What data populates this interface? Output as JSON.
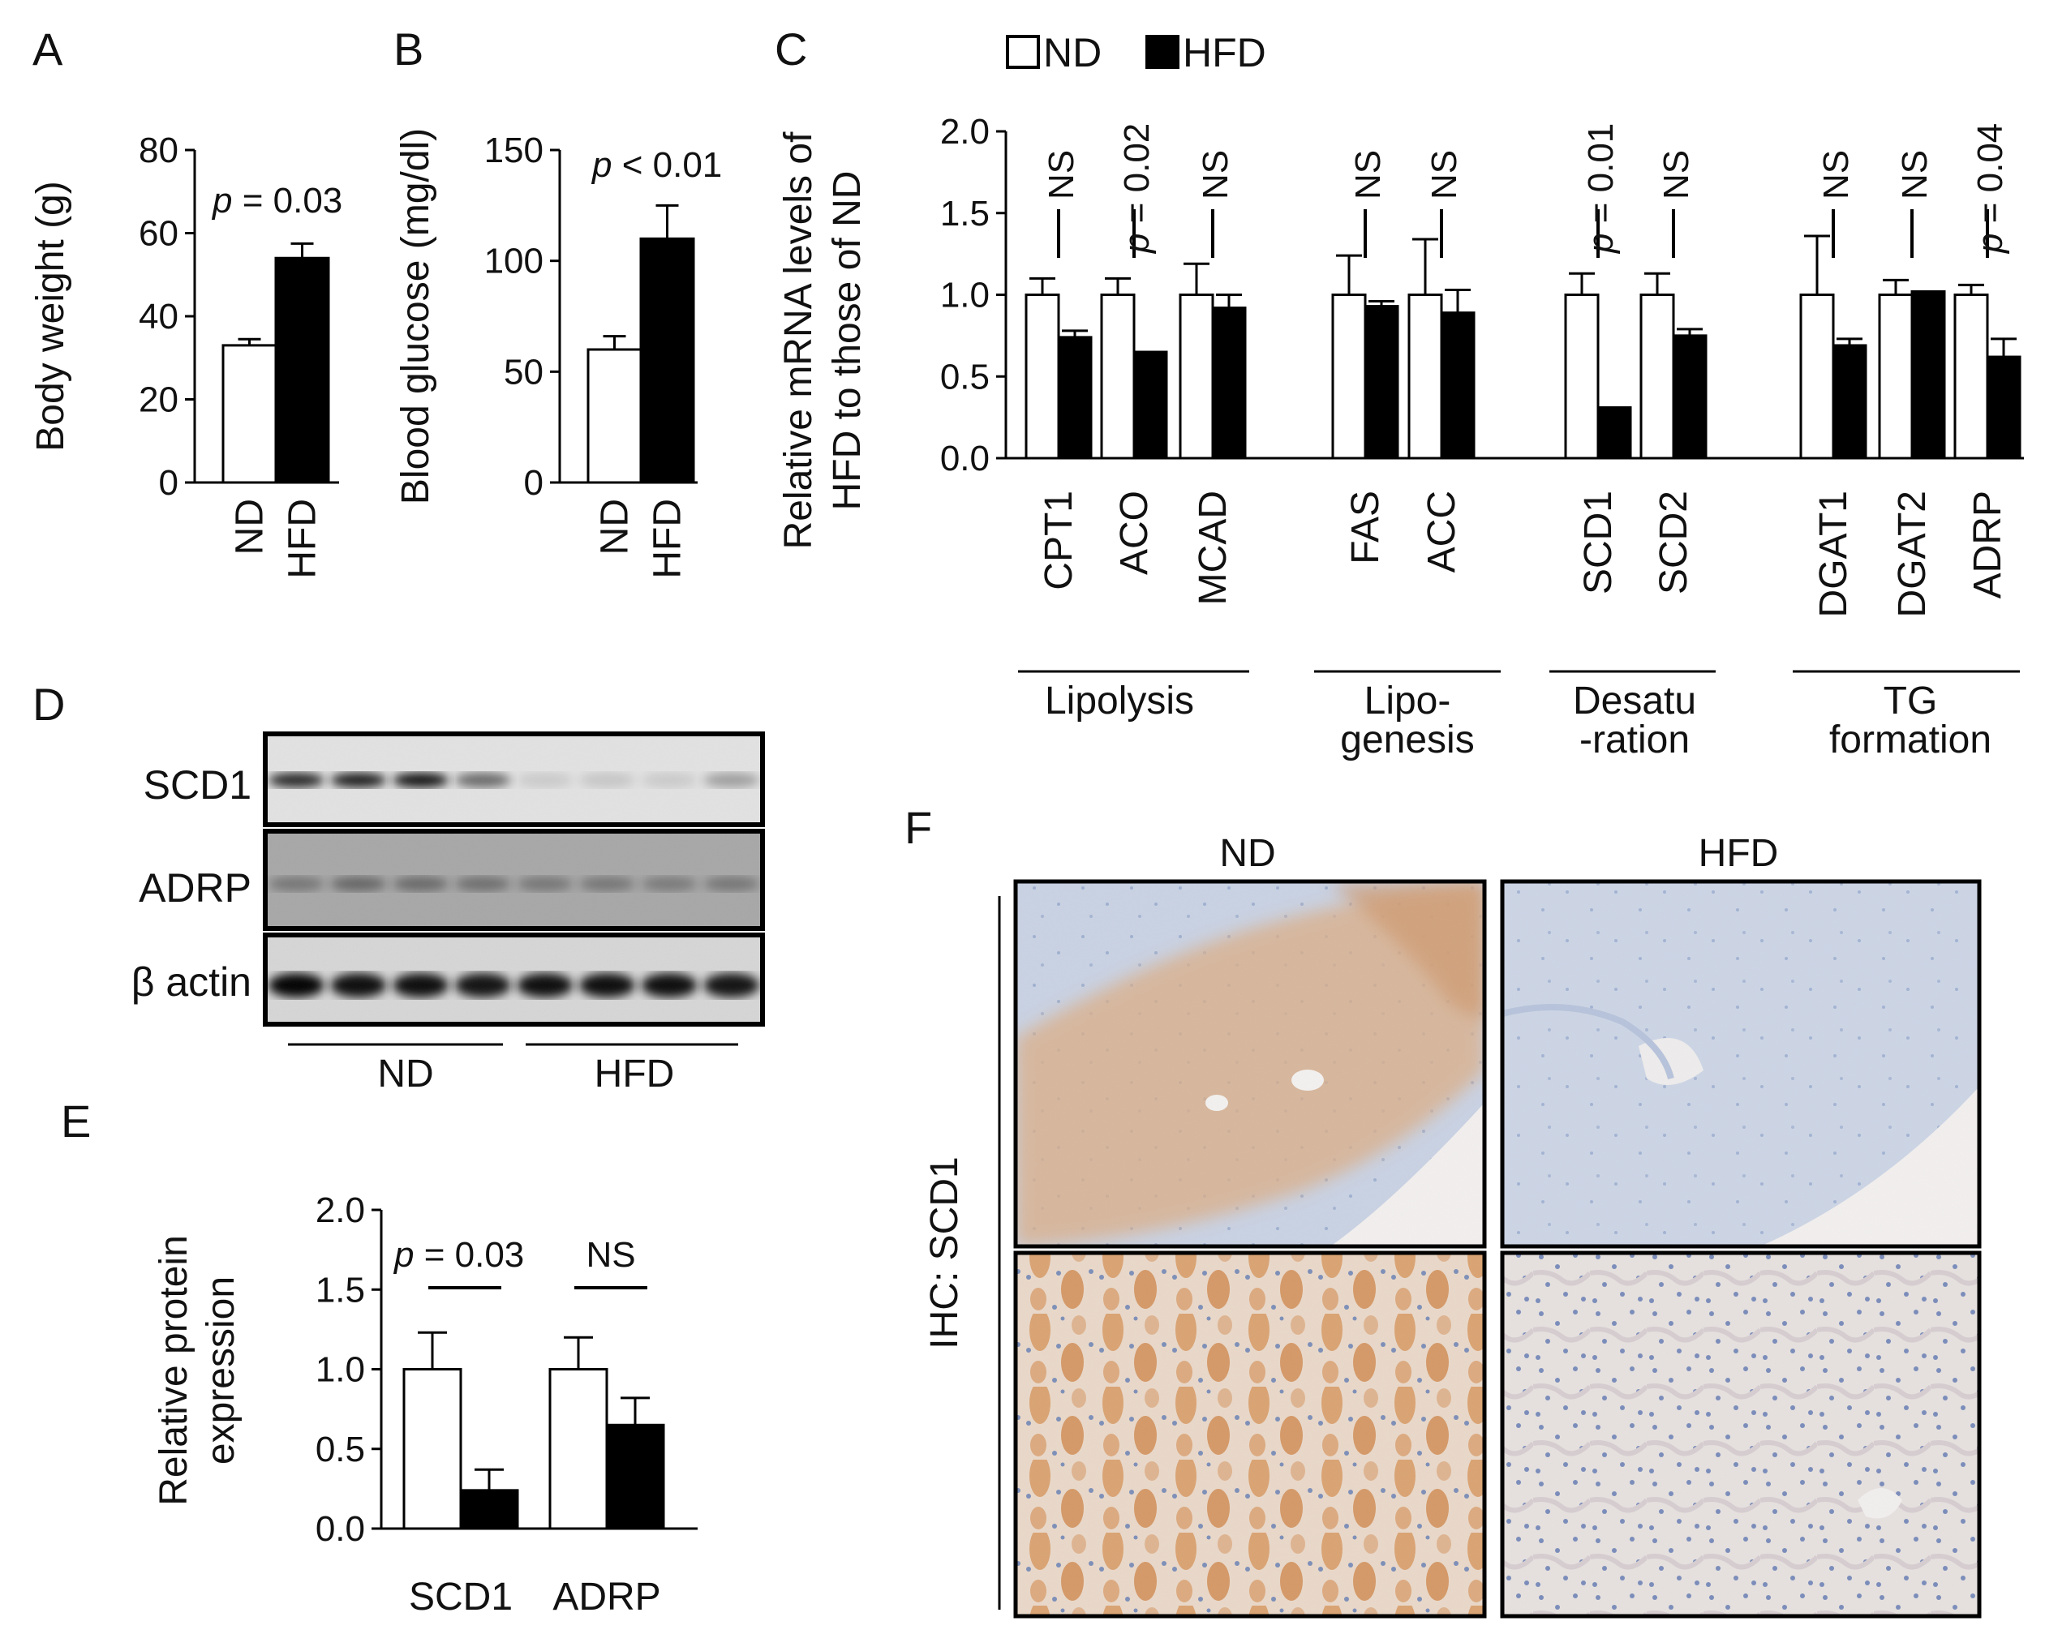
{
  "panels": {
    "A": "A",
    "B": "B",
    "C": "C",
    "D": "D",
    "E": "E",
    "F": "F"
  },
  "legend": {
    "nd": "ND",
    "hfd": "HFD",
    "nd_color": "#ffffff",
    "hfd_color": "#000000"
  },
  "chart_data": [
    {
      "id": "A",
      "type": "bar",
      "ylabel": "Body weight (g)",
      "ylim": [
        0,
        80
      ],
      "yticks": [
        "0",
        "20",
        "40",
        "60",
        "80"
      ],
      "categories": [
        "ND",
        "HFD"
      ],
      "values": [
        33,
        54
      ],
      "errors": [
        1.5,
        3.5
      ],
      "colors": [
        "#ffffff",
        "#000000"
      ],
      "annotation": {
        "p": "p",
        "rest": " = 0.03"
      }
    },
    {
      "id": "B",
      "type": "bar",
      "ylabel": "Blood glucose (mg/dl)",
      "ylim": [
        0,
        150
      ],
      "yticks": [
        "0",
        "50",
        "100",
        "150"
      ],
      "categories": [
        "ND",
        "HFD"
      ],
      "values": [
        60,
        110
      ],
      "errors": [
        6,
        15
      ],
      "colors": [
        "#ffffff",
        "#000000"
      ],
      "annotation": {
        "p": "p",
        "rest": " < 0.01"
      }
    },
    {
      "id": "C",
      "type": "bar",
      "ylabel": "Relative mRNA levels of HFD to those of ND",
      "ylabel_lines": [
        "Relative mRNA levels of",
        "HFD to those of ND"
      ],
      "ylim": [
        0,
        2
      ],
      "yticks": [
        "0.0",
        "0.5",
        "1.0",
        "1.5",
        "2.0"
      ],
      "categories": [
        "CPT1",
        "ACO",
        "MCAD",
        "FAS",
        "ACC",
        "SCD1",
        "SCD2",
        "DGAT1",
        "DGAT2",
        "ADRP"
      ],
      "series": [
        {
          "name": "ND",
          "values": [
            1.0,
            1.0,
            1.0,
            1.0,
            1.0,
            1.0,
            1.0,
            1.0,
            1.0,
            1.0
          ],
          "errors": [
            0.1,
            0.1,
            0.19,
            0.24,
            0.34,
            0.13,
            0.13,
            0.36,
            0.09,
            0.06
          ]
        },
        {
          "name": "HFD",
          "values": [
            0.74,
            0.65,
            0.92,
            0.93,
            0.89,
            0.31,
            0.75,
            0.69,
            1.02,
            0.62
          ],
          "errors": [
            0.04,
            0.0,
            0.08,
            0.03,
            0.14,
            0.0,
            0.04,
            0.04,
            0.0,
            0.11
          ]
        }
      ],
      "stats": [
        {
          "kind": "ns",
          "text": "NS"
        },
        {
          "kind": "p",
          "p": "p",
          "rest": " = 0.02"
        },
        {
          "kind": "ns",
          "text": "NS"
        },
        {
          "kind": "ns",
          "text": "NS"
        },
        {
          "kind": "ns",
          "text": "NS"
        },
        {
          "kind": "p",
          "p": "p",
          "rest": " = 0.01"
        },
        {
          "kind": "ns",
          "text": "NS"
        },
        {
          "kind": "ns",
          "text": "NS"
        },
        {
          "kind": "ns",
          "text": "NS"
        },
        {
          "kind": "p",
          "p": "p",
          "rest": " = 0.04"
        }
      ],
      "groups": [
        {
          "lines": [
            "Lipolysis"
          ]
        },
        {
          "lines": [
            "Lipo-",
            "genesis"
          ]
        },
        {
          "lines": [
            "Desatu",
            "-ration"
          ]
        },
        {
          "lines": [
            "TG",
            "formation"
          ]
        }
      ]
    },
    {
      "id": "E",
      "type": "bar",
      "ylabel": "Relative protein expression",
      "ylabel_lines": [
        "Relative protein",
        "expression"
      ],
      "ylim": [
        0,
        2
      ],
      "yticks": [
        "0.0",
        "0.5",
        "1.0",
        "1.5",
        "2.0"
      ],
      "categories": [
        "SCD1",
        "ADRP"
      ],
      "series": [
        {
          "name": "ND",
          "values": [
            1.0,
            1.0
          ],
          "errors": [
            0.23,
            0.2
          ]
        },
        {
          "name": "HFD",
          "values": [
            0.24,
            0.65
          ],
          "errors": [
            0.13,
            0.17
          ]
        }
      ],
      "stats": [
        {
          "kind": "p",
          "p": "p",
          "rest": " = 0.03"
        },
        {
          "kind": "ns",
          "text": "NS"
        }
      ]
    }
  ],
  "blot": {
    "rows": [
      {
        "label": "SCD1",
        "band_intensity": [
          0.85,
          0.9,
          0.95,
          0.55,
          0.1,
          0.12,
          0.1,
          0.3
        ]
      },
      {
        "label": "ADRP",
        "band_intensity": [
          0.3,
          0.4,
          0.38,
          0.35,
          0.3,
          0.3,
          0.28,
          0.3
        ]
      },
      {
        "label": "β actin",
        "band_intensity": [
          1.0,
          0.95,
          0.95,
          0.92,
          0.95,
          0.95,
          0.95,
          0.92
        ]
      }
    ],
    "groups": [
      "ND",
      "HFD"
    ]
  },
  "ihc": {
    "columns": [
      "ND",
      "HFD"
    ],
    "side_label": "IHC: SCD1"
  }
}
